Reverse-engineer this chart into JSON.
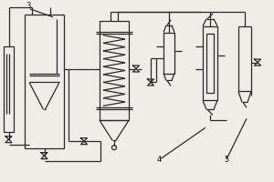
{
  "bg_color": "#eeede8",
  "line_color": "#2a2a2a",
  "label_color": "#1a1a1a",
  "figsize": [
    3.0,
    2.0
  ],
  "dpi": 100
}
